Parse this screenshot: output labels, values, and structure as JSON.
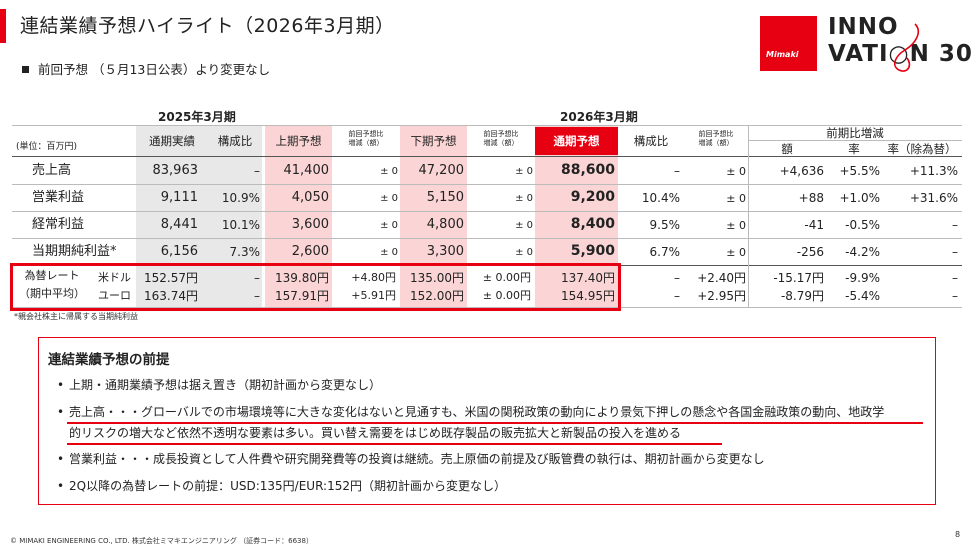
{
  "title": "連結業績予想ハイライト（2026年3月期）",
  "subtitle": "前回予想 （５月13日公表）より変更なし",
  "logo": {
    "brand": "Mimaki",
    "line1": "INNO",
    "line2": "VATI",
    "line2_end": "N",
    "number": "30",
    "accent": "#e60012"
  },
  "years": {
    "prev": "2025年3月期",
    "curr": "2026年3月期"
  },
  "headers": {
    "unit": "(単位：百万円)",
    "actual": "通期実績",
    "ratio": "構成比",
    "h1": "上期予想",
    "prev_diff": "前回予想比",
    "prev_diff2": "増減（額）",
    "h2": "下期予想",
    "full": "通期予想",
    "ratio2": "構成比",
    "yoy": "前期比増減",
    "amount": "額",
    "rate": "率",
    "rate_ex": "率（除為替）"
  },
  "rows": [
    {
      "label": "売上高",
      "actual": "83,963",
      "ratio": "–",
      "h1": "41,400",
      "h1d": "± 0",
      "h2": "47,200",
      "h2d": "± 0",
      "full": "88,600",
      "ratio2": "–",
      "fd": "± 0",
      "amt": "+4,636",
      "rate": "+5.5%",
      "rate_ex": "+11.3%"
    },
    {
      "label": "営業利益",
      "actual": "9,111",
      "ratio": "10.9%",
      "h1": "4,050",
      "h1d": "± 0",
      "h2": "5,150",
      "h2d": "± 0",
      "full": "9,200",
      "ratio2": "10.4%",
      "fd": "± 0",
      "amt": "+88",
      "rate": "+1.0%",
      "rate_ex": "+31.6%"
    },
    {
      "label": "経常利益",
      "actual": "8,441",
      "ratio": "10.1%",
      "h1": "3,600",
      "h1d": "± 0",
      "h2": "4,800",
      "h2d": "± 0",
      "full": "8,400",
      "ratio2": "9.5%",
      "fd": "± 0",
      "amt": "-41",
      "rate": "-0.5%",
      "rate_ex": "–"
    },
    {
      "label": "当期期純利益*",
      "actual": "6,156",
      "ratio": "7.3%",
      "h1": "2,600",
      "h1d": "± 0",
      "h2": "3,300",
      "h2d": "± 0",
      "full": "5,900",
      "ratio2": "6.7%",
      "fd": "± 0",
      "amt": "-256",
      "rate": "-4.2%",
      "rate_ex": "–"
    }
  ],
  "fx": {
    "label1": "為替レート",
    "label2": "（期中平均）",
    "rows": [
      {
        "cur": "米ドル",
        "actual": "152.57円",
        "ratio": "–",
        "h1": "139.80円",
        "h1d": "+4.80円",
        "h2": "135.00円",
        "h2d": "± 0.00円",
        "full": "137.40円",
        "ratio2": "–",
        "fd": "+2.40円",
        "amt": "-15.17円",
        "rate": "-9.9%",
        "rate_ex": "–"
      },
      {
        "cur": "ユーロ",
        "actual": "163.74円",
        "ratio": "–",
        "h1": "157.91円",
        "h1d": "+5.91円",
        "h2": "152.00円",
        "h2d": "± 0.00円",
        "full": "154.95円",
        "ratio2": "–",
        "fd": "+2.95円",
        "amt": "-8.79円",
        "rate": "-5.4%",
        "rate_ex": "–"
      }
    ]
  },
  "footnote": "*親会社株主に帰属する当期純利益",
  "premise": {
    "title": "連結業績予想の前提",
    "bullets": [
      "上期・通期業績予想は据え置き（期初計画から変更なし）",
      "売上高・・・グローバルでの市場環境等に大きな変化はないと見通すも、米国の関税政策の動向により景気下押しの懸念や各国金融政策の動向、地政学",
      "的リスクの増大など依然不透明な要素は多い。買い替え需要をはじめ既存製品の販売拡大と新製品の投入を進める",
      "営業利益・・・成長投資として人件費や研究開発費等の投資は継続。売上原価の前提及び販管費の執行は、期初計画から変更なし",
      "2Q以降の為替レートの前提：USD:135円/EUR:152円（期初計画から変更なし）"
    ]
  },
  "copyright": "© MIMAKI ENGINEERING CO., LTD. 株式会社ミマキエンジニアリング （証券コード：6638）",
  "page": "8"
}
